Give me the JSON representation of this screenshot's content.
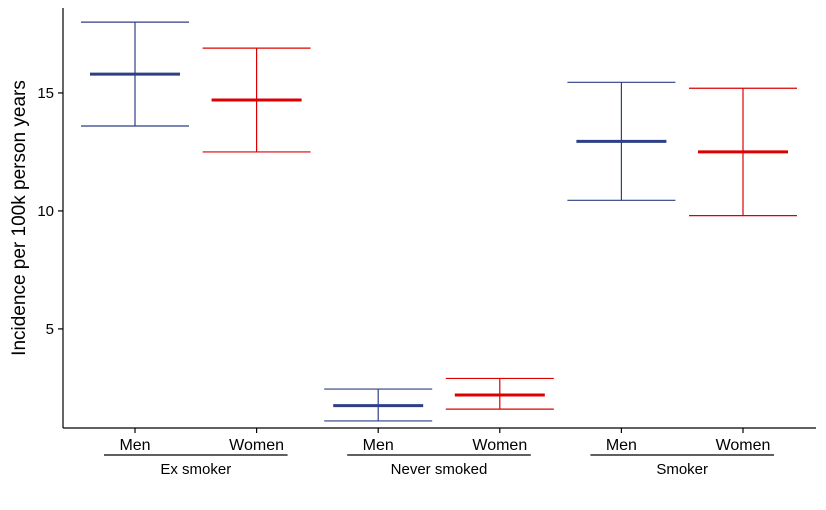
{
  "chart_data": {
    "type": "errorbar",
    "ylabel": "Incidence per 100k person years",
    "xlabel": "",
    "ylim": [
      0.8,
      18.6
    ],
    "yticks": [
      5,
      10,
      15
    ],
    "grid": false,
    "legend": "none",
    "groups": [
      {
        "name": "Ex smoker",
        "items": [
          {
            "label": "Men",
            "estimate": 15.8,
            "lower": 13.6,
            "upper": 18.0,
            "color": "#2E3F85"
          },
          {
            "label": "Women",
            "estimate": 14.7,
            "lower": 12.5,
            "upper": 16.9,
            "color": "#DD0000"
          }
        ]
      },
      {
        "name": "Never smoked",
        "items": [
          {
            "label": "Men",
            "estimate": 1.75,
            "lower": 1.1,
            "upper": 2.45,
            "color": "#2E3F85"
          },
          {
            "label": "Women",
            "estimate": 2.2,
            "lower": 1.6,
            "upper": 2.9,
            "color": "#DD0000"
          }
        ]
      },
      {
        "name": "Smoker",
        "items": [
          {
            "label": "Men",
            "estimate": 12.95,
            "lower": 10.45,
            "upper": 15.45,
            "color": "#2E3F85"
          },
          {
            "label": "Women",
            "estimate": 12.5,
            "lower": 9.8,
            "upper": 15.2,
            "color": "#DD0000"
          }
        ]
      }
    ]
  }
}
